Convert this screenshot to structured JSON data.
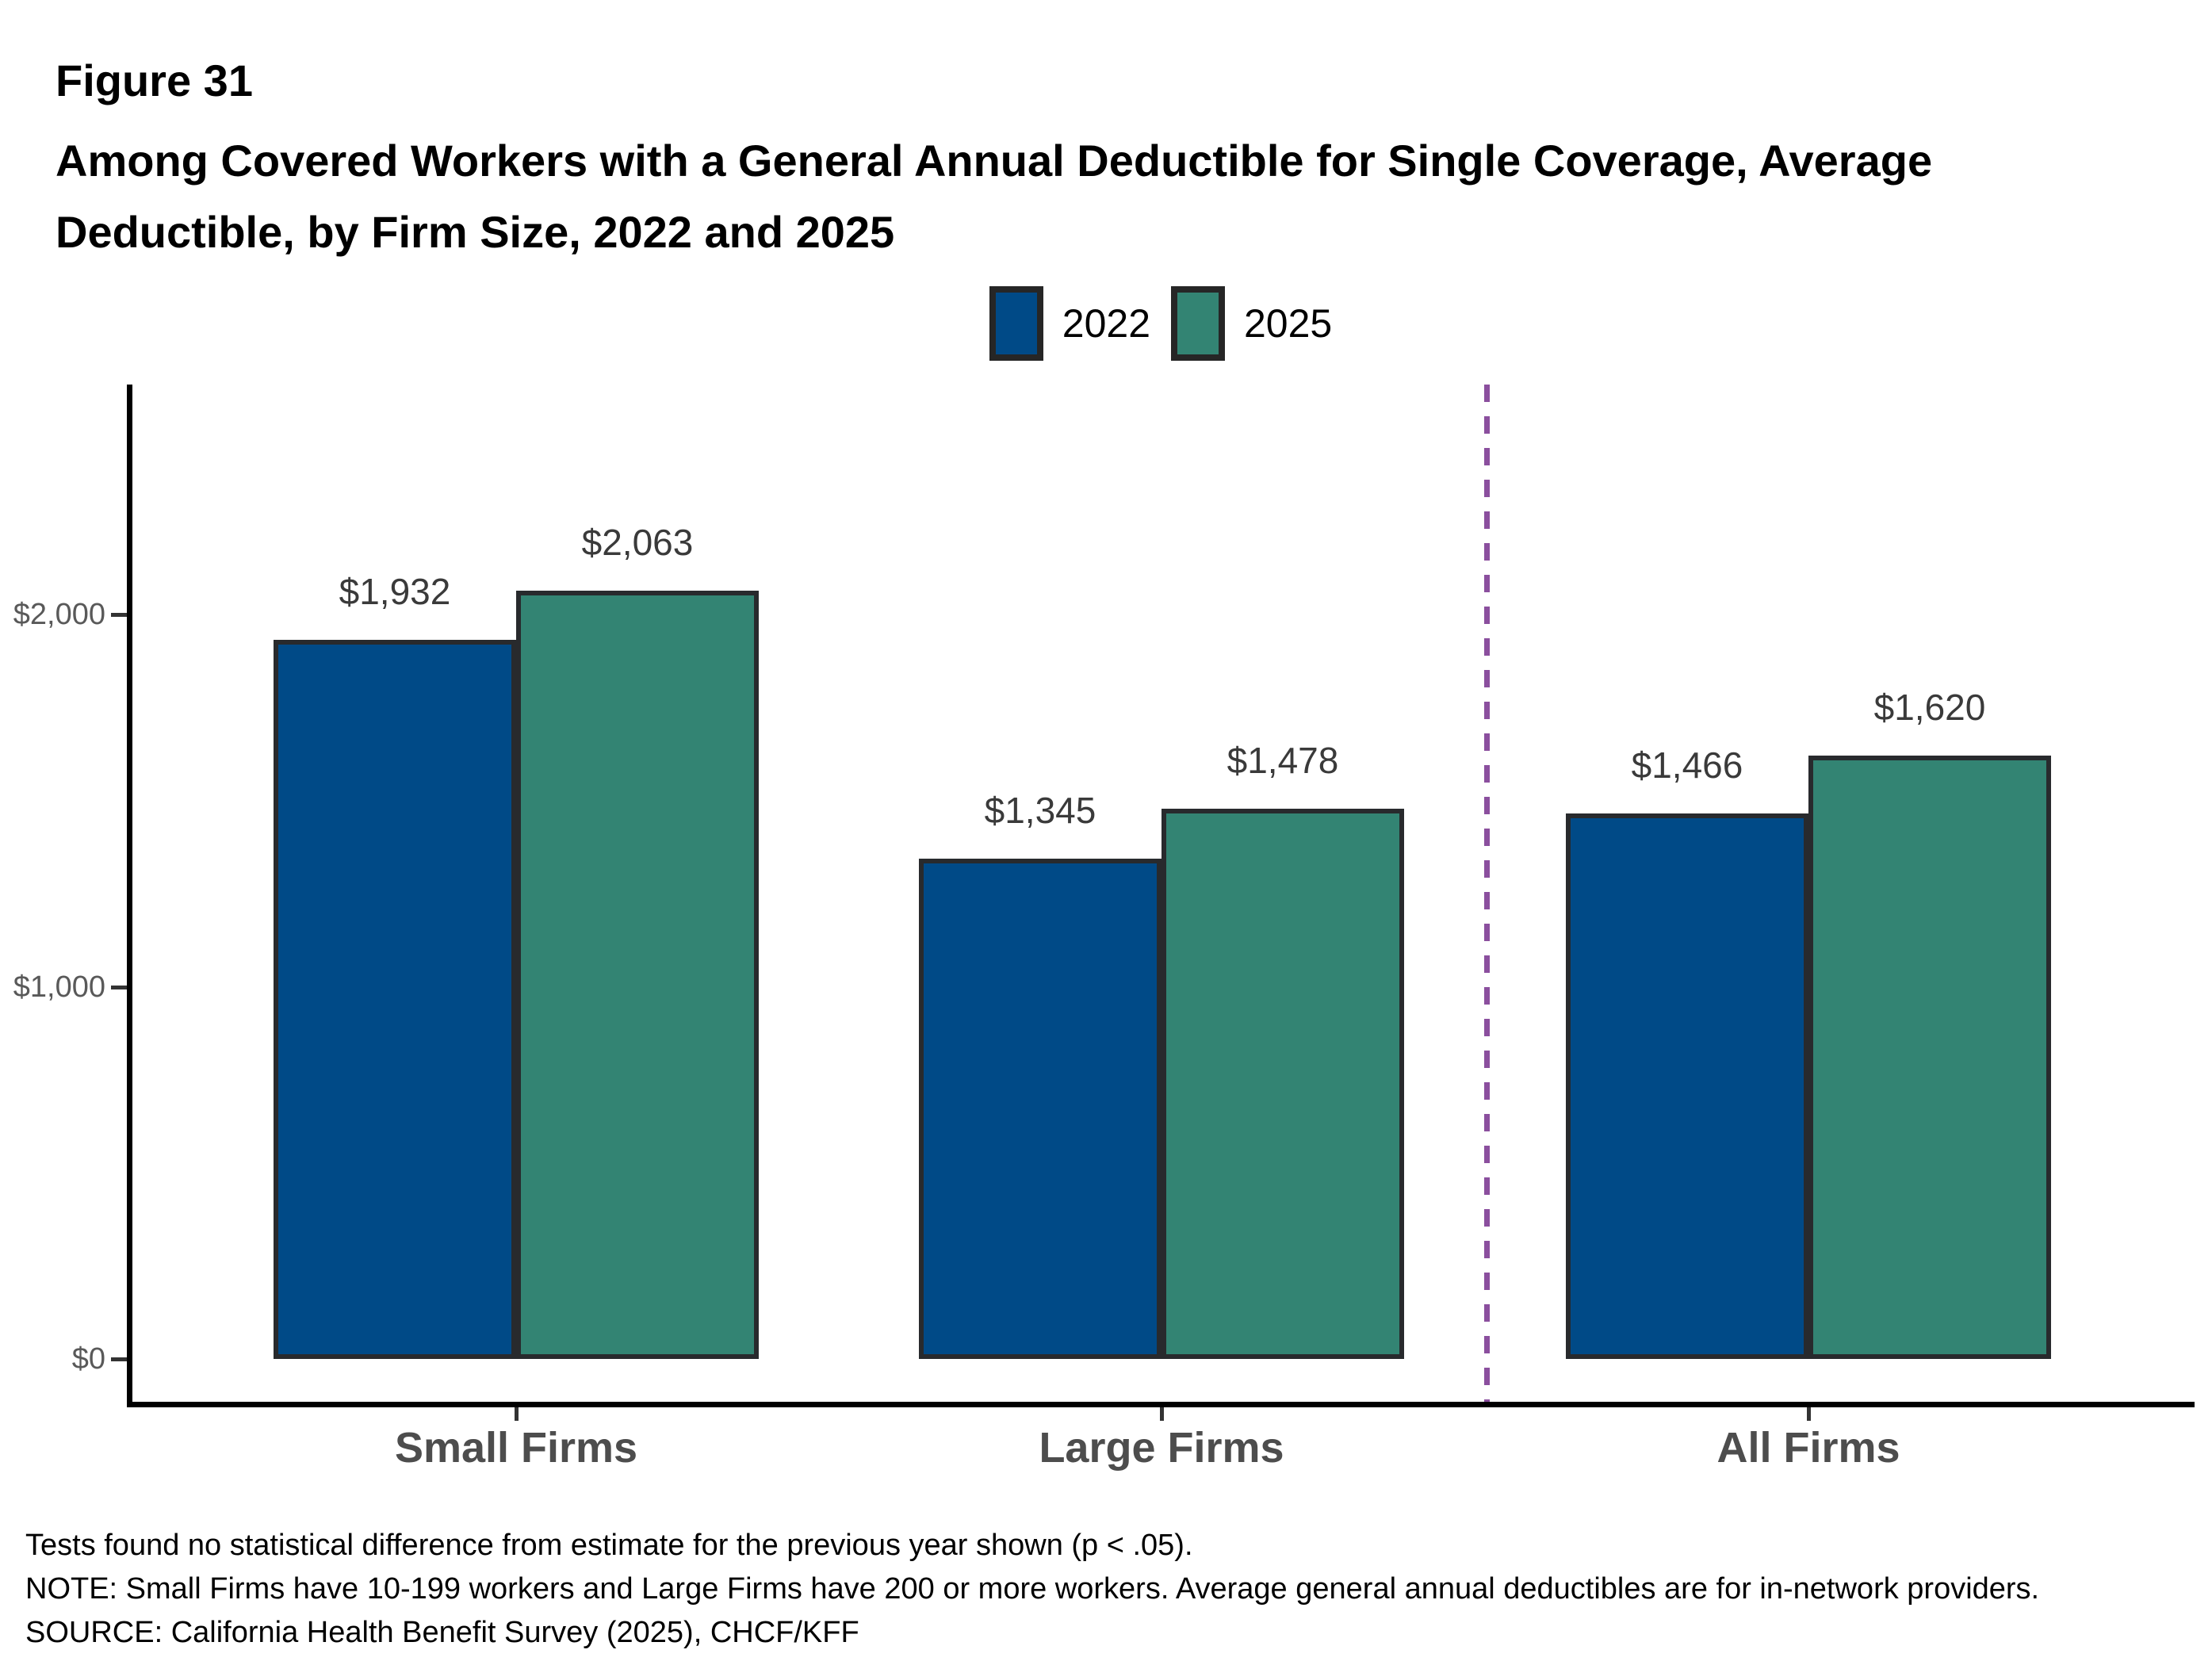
{
  "figure_label": "Figure 31",
  "title": "Among Covered Workers with a General Annual Deductible for Single Coverage, Average Deductible, by Firm Size, 2022 and 2025",
  "legend": [
    {
      "label": "2022",
      "color": "#004a87"
    },
    {
      "label": "2025",
      "color": "#338473"
    }
  ],
  "chart_data": {
    "type": "bar",
    "categories": [
      "Small Firms",
      "Large Firms",
      "All Firms"
    ],
    "series": [
      {
        "name": "2022",
        "color": "#004a87",
        "values": [
          1932,
          1345,
          1466
        ]
      },
      {
        "name": "2025",
        "color": "#338473",
        "values": [
          2063,
          1478,
          1620
        ]
      }
    ],
    "value_labels": [
      [
        "$1,932",
        "$1,345",
        "$1,466"
      ],
      [
        "$2,063",
        "$1,478",
        "$1,620"
      ]
    ],
    "title": "Among Covered Workers with a General Annual Deductible for Single Coverage, Average Deductible, by Firm Size, 2022 and 2025",
    "xlabel": "",
    "ylabel": "",
    "y_ticks": [
      {
        "value": 0,
        "label": "$0"
      },
      {
        "value": 1000,
        "label": "$1,000"
      },
      {
        "value": 2000,
        "label": "$2,000"
      }
    ],
    "ylim": [
      0,
      2610
    ],
    "grid": false,
    "legend_position": "top-center",
    "bar_border_color": "#282a2d",
    "separator_line": {
      "style": "dashed",
      "color": "#8b4f9e",
      "position": "between Large Firms and All Firms"
    }
  },
  "footnotes": [
    "Tests found no statistical difference from estimate for the previous year shown (p < .05).",
    "NOTE: Small Firms have 10-199 workers and Large Firms have 200 or more workers. Average general annual deductibles are for in-network providers.",
    "SOURCE: California Health Benefit Survey (2025), CHCF/KFF"
  ]
}
